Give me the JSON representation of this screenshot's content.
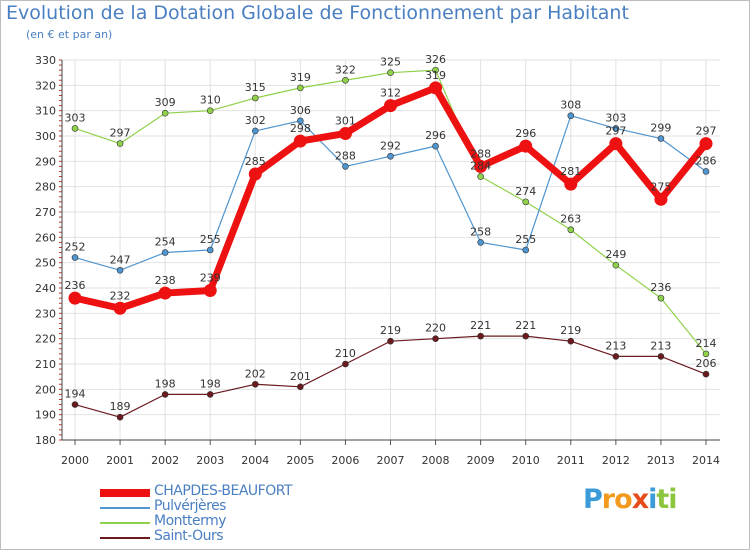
{
  "title": "Evolution de la Dotation Globale de Fonctionnement par Habitant",
  "subtitle": "(en € et par an)",
  "brand": {
    "letters": [
      "P",
      "r",
      "o",
      "x",
      "i",
      "t",
      "i"
    ],
    "colors": [
      "#3a9bd8",
      "#f29a1d",
      "#f29a1d",
      "#e84b1a",
      "#3a9bd8",
      "#8cc63f",
      "#8cc63f"
    ]
  },
  "chart_data": {
    "type": "line",
    "x": [
      "2000",
      "2001",
      "2002",
      "2003",
      "2004",
      "2005",
      "2006",
      "2007",
      "2008",
      "2009",
      "2010",
      "2011",
      "2012",
      "2013",
      "2014"
    ],
    "ylim": [
      180,
      330
    ],
    "yticks": [
      180,
      190,
      200,
      210,
      220,
      230,
      240,
      250,
      260,
      270,
      280,
      290,
      300,
      310,
      320,
      330
    ],
    "grid": true,
    "legend_position": "bottom-left",
    "series": [
      {
        "name": "Saint-Ours",
        "color": "#6b1a1e",
        "width": 1.2,
        "marker": 3,
        "values": [
          194,
          189,
          198,
          198,
          202,
          201,
          210,
          219,
          220,
          221,
          221,
          219,
          213,
          213,
          206
        ]
      },
      {
        "name": "Monttermy",
        "color": "#8fd14a",
        "width": 1.2,
        "marker": 3,
        "values": [
          303,
          297,
          309,
          310,
          315,
          319,
          322,
          325,
          326,
          284,
          274,
          263,
          249,
          236,
          214
        ]
      },
      {
        "name": "Pulvérjères",
        "color": "#4f95cf",
        "width": 1.2,
        "marker": 3,
        "values": [
          252,
          247,
          254,
          255,
          302,
          306,
          288,
          292,
          296,
          258,
          255,
          308,
          303,
          299,
          286
        ]
      },
      {
        "name": "CHAPDES-BEAUFORT",
        "color": "#ee1111",
        "width": 7,
        "marker": 6.5,
        "values": [
          236,
          232,
          238,
          239,
          285,
          298,
          301,
          312,
          319,
          288,
          296,
          281,
          297,
          275,
          297
        ]
      }
    ]
  }
}
